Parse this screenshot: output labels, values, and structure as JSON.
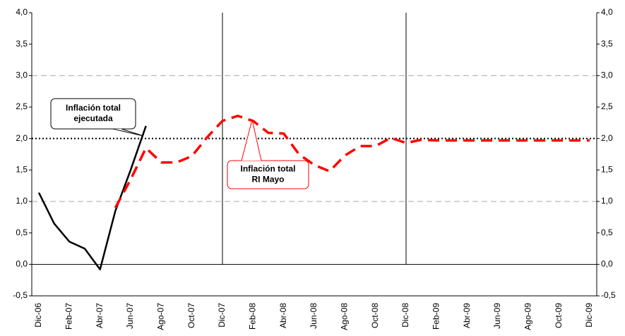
{
  "chart_data": {
    "type": "line",
    "categories": [
      "Dic-06",
      null,
      "Feb-07",
      null,
      "Abr-07",
      null,
      "Jun-07",
      null,
      "Ago-07",
      null,
      "Oct-07",
      null,
      "Dic-07",
      null,
      "Feb-08",
      null,
      "Abr-08",
      null,
      "Jun-08",
      null,
      "Ago-08",
      null,
      "Oct-08",
      null,
      "Dic-08",
      null,
      "Feb-09",
      null,
      "Abr-09",
      null,
      "Jun-09",
      null,
      "Ago-09",
      null,
      "Oct-09",
      null,
      "Dic-09"
    ],
    "series": [
      {
        "color": "#000000",
        "style": "solid",
        "values": [
          1.14,
          0.65,
          0.36,
          0.25,
          -0.08,
          0.85,
          1.5,
          2.2,
          null,
          null,
          null,
          null,
          null,
          null,
          null,
          null,
          null,
          null,
          null,
          null,
          null,
          null,
          null,
          null,
          null,
          null,
          null,
          null,
          null,
          null,
          null,
          null,
          null,
          null,
          null,
          null,
          null
        ]
      },
      {
        "color": "#ff0000",
        "style": "dashed",
        "values": [
          null,
          null,
          null,
          null,
          null,
          0.9,
          1.35,
          1.85,
          1.62,
          1.62,
          1.72,
          2.02,
          2.28,
          2.36,
          2.28,
          2.09,
          2.08,
          1.75,
          1.58,
          1.48,
          1.73,
          1.88,
          1.88,
          2.01,
          1.93,
          1.98,
          1.97,
          1.97,
          1.97,
          1.97,
          1.97,
          1.97,
          1.97,
          1.97,
          1.97,
          1.97,
          1.97
        ]
      }
    ],
    "ylim": [
      -0.5,
      4.0
    ],
    "yticks": [
      {
        "value": -0.5,
        "label": "-0,5"
      },
      {
        "value": 0,
        "label": "0,0"
      },
      {
        "value": 0.5,
        "label": "0,5"
      },
      {
        "value": 1,
        "label": "1,0"
      },
      {
        "value": 1.5,
        "label": "1,5"
      },
      {
        "value": 2,
        "label": "2,0"
      },
      {
        "value": 2.5,
        "label": "2,5"
      },
      {
        "value": 3,
        "label": "3,0"
      },
      {
        "value": 3.5,
        "label": "3,5"
      },
      {
        "value": 4,
        "label": "4,0"
      }
    ],
    "y2lim": [
      -0.5,
      4.0
    ],
    "y2ticks": [
      {
        "value": -0.5,
        "label": "-0,5"
      },
      {
        "value": 0,
        "label": "0,0"
      },
      {
        "value": 0.5,
        "label": "0,5"
      },
      {
        "value": 1,
        "label": "1,0"
      },
      {
        "value": 1.5,
        "label": "1,5"
      },
      {
        "value": 2,
        "label": "2,0"
      },
      {
        "value": 2.5,
        "label": "2,5"
      },
      {
        "value": 3,
        "label": "3,0"
      },
      {
        "value": 3.5,
        "label": "3,5"
      },
      {
        "value": 4,
        "label": "4,0"
      }
    ],
    "grid_values": [
      1,
      3
    ],
    "target_line": 2,
    "vlines": [
      12,
      24
    ],
    "annotations": [
      {
        "text": [
          "Inflación total",
          "ejecutada"
        ],
        "color": "#000000"
      },
      {
        "text": [
          "Inflación total",
          "RI Mayo"
        ],
        "color": "#ff0000"
      }
    ]
  }
}
